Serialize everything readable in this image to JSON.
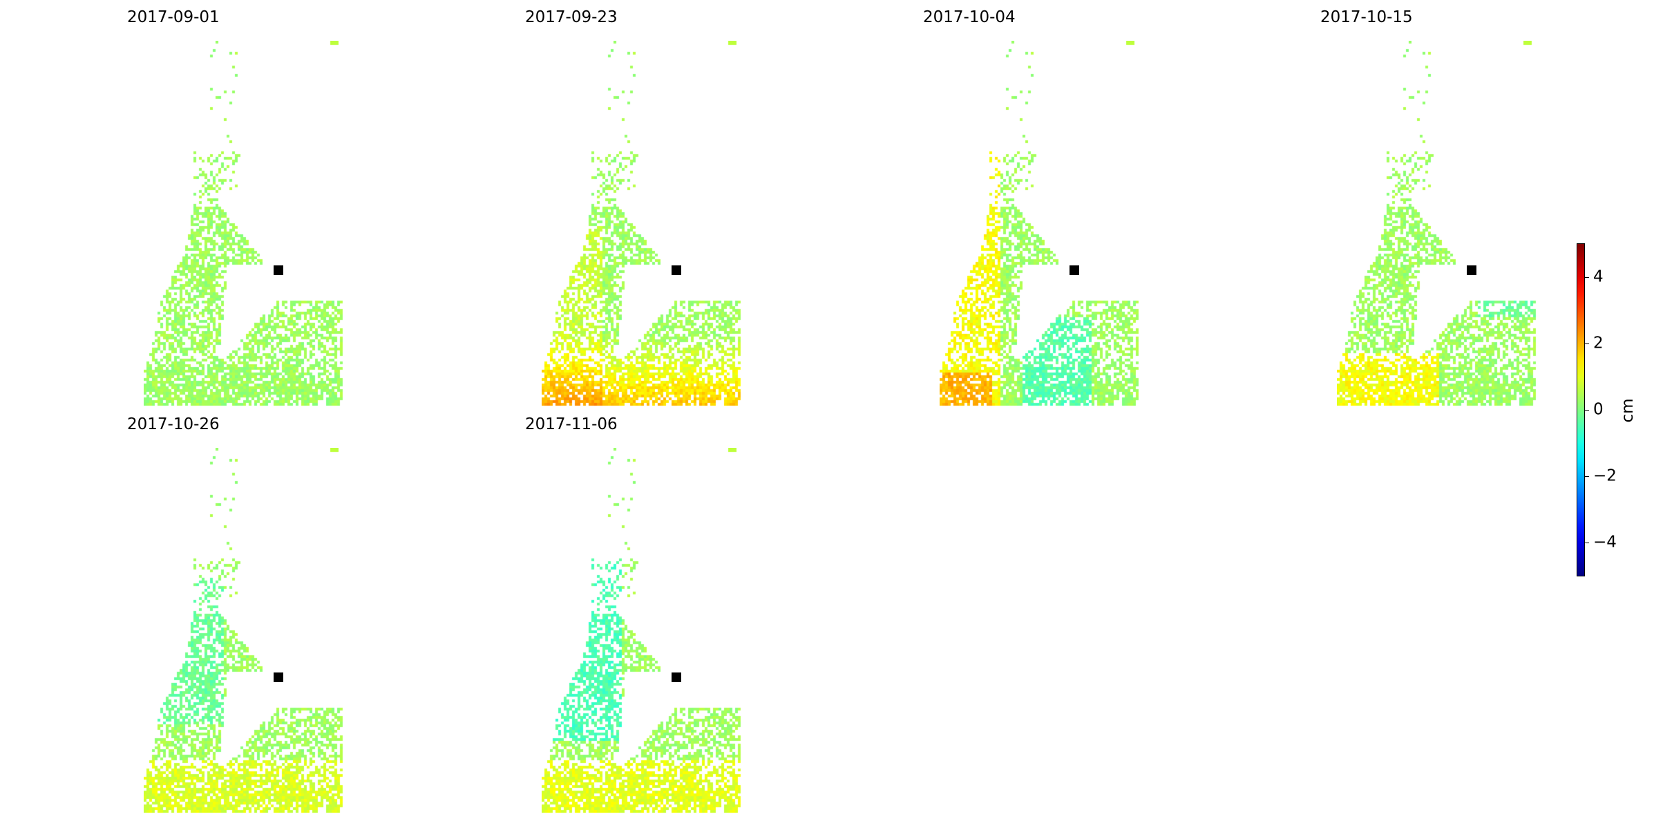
{
  "panels": [
    {
      "date": "2017-09-01",
      "pattern": "uniform"
    },
    {
      "date": "2017-09-23",
      "pattern": "yellow-bottom"
    },
    {
      "date": "2017-10-04",
      "pattern": "yellow-left"
    },
    {
      "date": "2017-10-15",
      "pattern": "yellow-bottom-left"
    },
    {
      "date": "2017-10-26",
      "pattern": "cyan-left"
    },
    {
      "date": "2017-11-06",
      "pattern": "cyan-left-strong"
    }
  ],
  "colorbar": {
    "colormap": "jet",
    "range": [
      -5,
      5
    ],
    "ticks": [
      "4",
      "2",
      "0",
      "−2",
      "−4"
    ],
    "tick_values": [
      4,
      2,
      0,
      -2,
      -4
    ],
    "unit": "cm"
  },
  "reference_point": {
    "color": "#000000",
    "shape": "square"
  }
}
